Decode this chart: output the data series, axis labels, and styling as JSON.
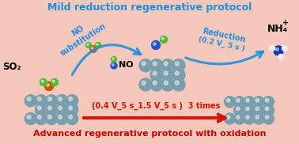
{
  "title_top": "Mild reduction regenerative protocol",
  "title_bottom": "Advanced regenerative protocol with oxidation",
  "title_top_color": "#1A8FE3",
  "title_bottom_color": "#CC0000",
  "label_SO2": "SO₂",
  "label_NO": "NO",
  "label_NH4": "NH₄",
  "label_NH4_sup": "+",
  "label_no_sub_1": "NO",
  "label_no_sub_2": "substitution",
  "label_reduction": "Reduction",
  "label_02v": "(0.2 V_ 5 s )",
  "label_cycle": "(0.4 V_5 s_1.5 V_5 s )  3 times",
  "arrow_blue_color": "#1A8FE3",
  "arrow_red_color": "#CC1100",
  "pt_color": "#7A9EAD",
  "pt_dark": "#5A7E8D",
  "so2_S_color": "#CC5500",
  "so2_O_color": "#55BB33",
  "no_N_color": "#2255CC",
  "no_O_color": "#55BB33",
  "nh4_N_color": "#1133BB",
  "nh4_H_color": "#E8E8E8",
  "bg_color": "#F4C4B4",
  "figsize": [
    3.78,
    1.82
  ],
  "dpi": 100
}
